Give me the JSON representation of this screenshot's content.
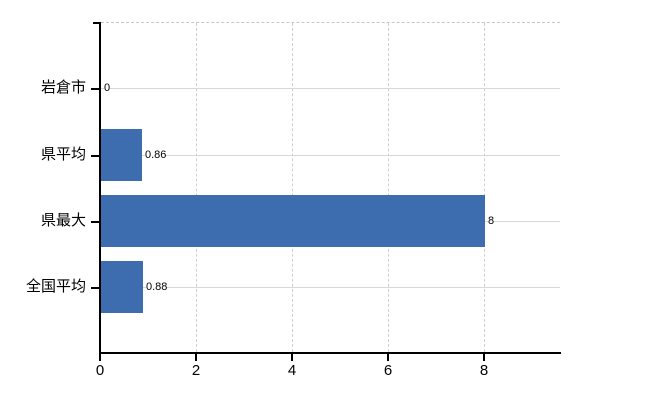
{
  "chart_data": {
    "type": "bar",
    "orientation": "horizontal",
    "title": "",
    "xlabel": "",
    "ylabel": "",
    "categories": [
      "岩倉市",
      "県平均",
      "県最大",
      "全国平均"
    ],
    "values": [
      0,
      0.86,
      8,
      0.88
    ],
    "value_labels": [
      "0",
      "0.86",
      "8",
      "0.88"
    ],
    "x_ticks": [
      0,
      2,
      4,
      6,
      8
    ],
    "x_tick_labels": [
      "0",
      "2",
      "4",
      "6",
      "8"
    ],
    "xlim": [
      0,
      9.58
    ],
    "grid": true,
    "legend": false,
    "bar_color": "#3d6dae",
    "axis_color": "#000000",
    "grid_color": "#d8d8d8",
    "background_color": "#ffffff"
  }
}
